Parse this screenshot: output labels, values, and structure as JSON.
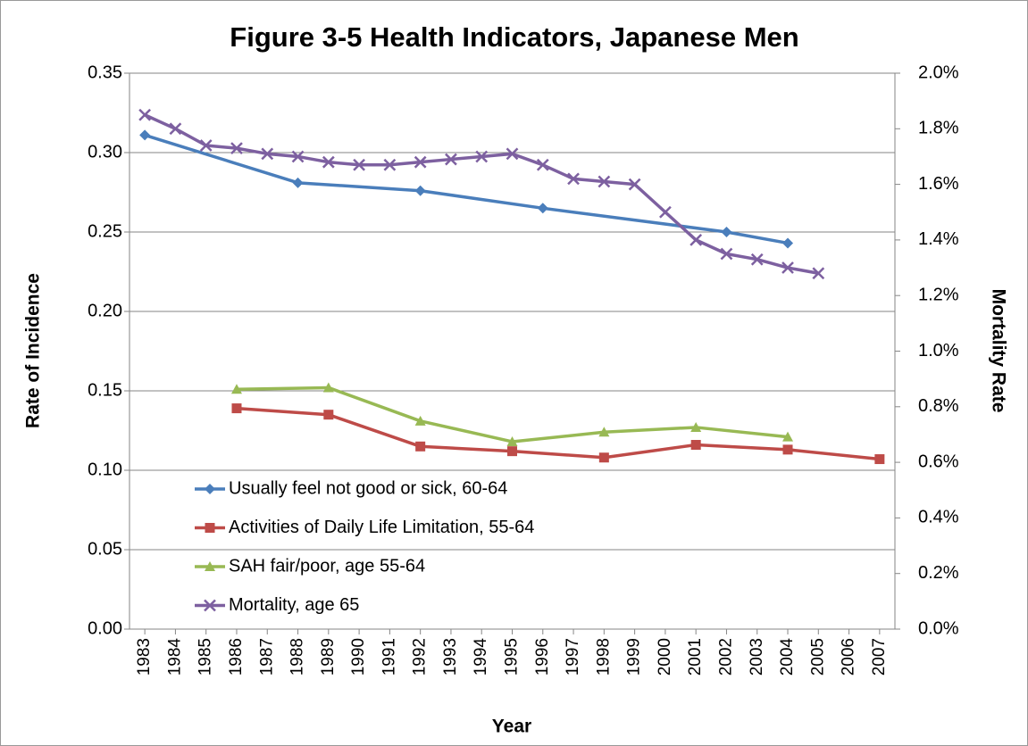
{
  "chart_data": {
    "type": "line",
    "title": "Figure 3-5 Health Indicators, Japanese Men",
    "x_label": "Year",
    "y_label": "Rate of Incidence",
    "y2_label": "Mortality Rate",
    "xlim": [
      1982.5,
      2007.5
    ],
    "xticks": [
      1983,
      1984,
      1985,
      1986,
      1987,
      1988,
      1989,
      1990,
      1991,
      1992,
      1993,
      1994,
      1995,
      1996,
      1997,
      1998,
      1999,
      2000,
      2001,
      2002,
      2003,
      2004,
      2005,
      2006,
      2007
    ],
    "ylim": [
      0,
      0.35
    ],
    "yticks": [
      {
        "value": 0,
        "label": "0.00"
      },
      {
        "value": 0.05,
        "label": "0.05"
      },
      {
        "value": 0.1,
        "label": "0.10"
      },
      {
        "value": 0.15,
        "label": "0.15"
      },
      {
        "value": 0.2,
        "label": "0.20"
      },
      {
        "value": 0.25,
        "label": "0.25"
      },
      {
        "value": 0.3,
        "label": "0.30"
      },
      {
        "value": 0.35,
        "label": "0.35"
      }
    ],
    "y2lim": [
      0,
      2.0
    ],
    "y2ticks": [
      {
        "value": 0,
        "label": "0.0%"
      },
      {
        "value": 0.2,
        "label": "0.2%"
      },
      {
        "value": 0.4,
        "label": "0.4%"
      },
      {
        "value": 0.6,
        "label": "0.6%"
      },
      {
        "value": 0.8,
        "label": "0.8%"
      },
      {
        "value": 1.0,
        "label": "1.0%"
      },
      {
        "value": 1.2,
        "label": "1.2%"
      },
      {
        "value": 1.4,
        "label": "1.4%"
      },
      {
        "value": 1.6,
        "label": "1.6%"
      },
      {
        "value": 1.8,
        "label": "1.8%"
      },
      {
        "value": 2.0,
        "label": "2.0%"
      }
    ],
    "grid": true,
    "legend": "lower-left",
    "series": [
      {
        "name": "Usually feel not good or sick, 60-64",
        "color": "#4a7ebb",
        "marker": "diamond",
        "x": [
          1983,
          1988,
          1992,
          1996,
          2002,
          2004
        ],
        "values": [
          0.311,
          0.281,
          0.276,
          0.265,
          0.25,
          0.243
        ]
      },
      {
        "name": "Activities of Daily Life Limitation, 55-64",
        "color": "#be4b48",
        "marker": "square",
        "x": [
          1986,
          1989,
          1992,
          1995,
          1998,
          2001,
          2004,
          2007
        ],
        "values": [
          0.139,
          0.135,
          0.115,
          0.112,
          0.108,
          0.116,
          0.113,
          0.107
        ]
      },
      {
        "name": "SAH fair/poor, age 55-64",
        "color": "#98b954",
        "marker": "triangle",
        "x": [
          1986,
          1989,
          1992,
          1995,
          1998,
          2001,
          2004
        ],
        "values": [
          0.151,
          0.152,
          0.131,
          0.118,
          0.124,
          0.127,
          0.121
        ]
      },
      {
        "name": "Mortality, age 65",
        "color": "#7d60a0",
        "marker": "x",
        "axis": "y2",
        "x": [
          1983,
          1984,
          1985,
          1986,
          1987,
          1988,
          1989,
          1990,
          1991,
          1992,
          1993,
          1994,
          1995,
          1996,
          1997,
          1998,
          1999,
          2000,
          2001,
          2002,
          2003,
          2004,
          2005
        ],
        "values": [
          1.85,
          1.8,
          1.74,
          1.73,
          1.71,
          1.7,
          1.68,
          1.67,
          1.67,
          1.68,
          1.69,
          1.7,
          1.71,
          1.67,
          1.62,
          1.61,
          1.6,
          1.5,
          1.4,
          1.35,
          1.33,
          1.3,
          1.28
        ]
      }
    ]
  }
}
